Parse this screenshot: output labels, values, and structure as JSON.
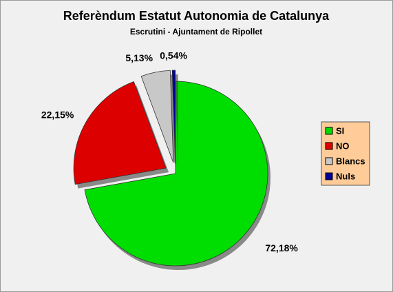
{
  "chart_data": {
    "type": "pie",
    "title": "Referèndum Estatut Autonomia de Catalunya",
    "subtitle": "Escrutini - Ajuntament de Ripollet",
    "categories": [
      "SI",
      "NO",
      "Blancs",
      "Nuls"
    ],
    "values": [
      72.18,
      22.15,
      5.13,
      0.54
    ],
    "value_labels": [
      "72,18%",
      "22,15%",
      "5,13%",
      "0,54%"
    ],
    "colors": [
      "#00dd00",
      "#dd0000",
      "#c8c8c8",
      "#000099"
    ],
    "legend": "right"
  }
}
